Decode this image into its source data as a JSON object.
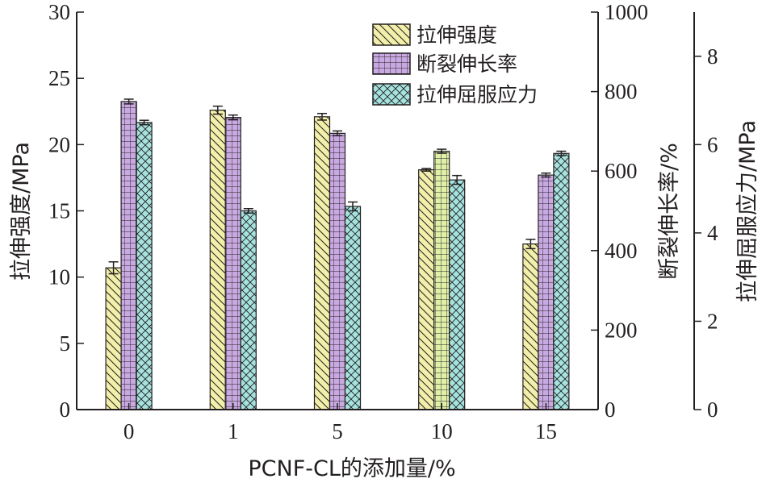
{
  "chart_data": {
    "type": "bar",
    "xlabel": "PCNF-CL的添加量/%",
    "categories": [
      "0",
      "1",
      "5",
      "10",
      "15"
    ],
    "axes": {
      "left": {
        "label": "拉伸强度/MPa",
        "range": [
          0,
          30
        ],
        "ticks": [
          "0",
          "5",
          "10",
          "15",
          "20",
          "25",
          "30"
        ]
      },
      "right1": {
        "label": "断裂伸长率/%",
        "range": [
          0,
          1000
        ],
        "ticks": [
          "0",
          "200",
          "400",
          "600",
          "800",
          "1000"
        ]
      },
      "right2": {
        "label": "拉伸屈服应力/MPa",
        "range": [
          0,
          9
        ],
        "ticks": [
          "0",
          "2",
          "4",
          "6",
          "8"
        ]
      }
    },
    "series": [
      {
        "name": "拉伸强度",
        "axis": "left",
        "pattern": "diagonal-lines",
        "color": "#f2efaa",
        "values": [
          10.7,
          22.6,
          22.1,
          18.1,
          12.5
        ],
        "errors": [
          0.45,
          0.3,
          0.25,
          0.1,
          0.35
        ]
      },
      {
        "name": "断裂伸长率",
        "axis": "right1",
        "pattern": "grid",
        "color": "#c9a9e2",
        "values": [
          775,
          735,
          695,
          650,
          590
        ],
        "errors": [
          6,
          6,
          6,
          5,
          5
        ]
      },
      {
        "name": "拉伸屈服应力",
        "axis": "right2",
        "pattern": "cross-hatch",
        "color": "#a6e3df",
        "values": [
          6.5,
          4.5,
          4.6,
          5.2,
          5.8
        ],
        "errors": [
          0.05,
          0.05,
          0.1,
          0.1,
          0.05
        ]
      }
    ],
    "legend_position": "top-right",
    "grid": false
  }
}
